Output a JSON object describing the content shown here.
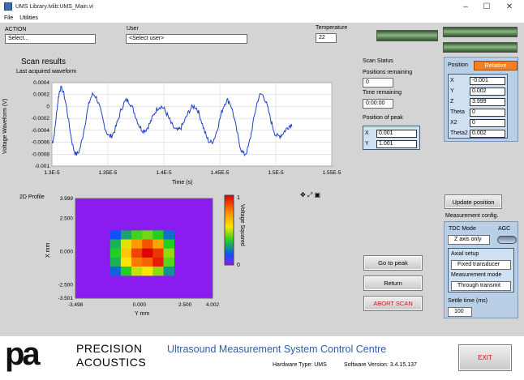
{
  "window": {
    "title": "UMS Library.lvlib:UMS_Main.vi",
    "minimize": "–",
    "maximize": "☐",
    "close": "✕"
  },
  "menu": [
    "File",
    "Utilities"
  ],
  "action": {
    "label": "ACTION",
    "value": "Select..."
  },
  "user": {
    "label": "User",
    "value": "<Select user>"
  },
  "temperature": {
    "label": "Temperature",
    "value": "22"
  },
  "scan_results": {
    "title": "Scan results",
    "subtitle": "Last acquired waveform",
    "ylabel": "Voltage Waveform (V)",
    "xlabel": "Time (s)",
    "yticks": [
      "0.0004",
      "0.0002",
      "0",
      "-0.0002",
      "-0.0004",
      "-0.0006",
      "-0.0008",
      "-0.001"
    ],
    "xticks": [
      "1.3E-5",
      "1.35E-5",
      "1.4E-5",
      "1.45E-5",
      "1.5E-5",
      "1.55E-5"
    ]
  },
  "scan_status": {
    "title": "Scan Status",
    "positions_label": "Positions remaining",
    "positions": "0",
    "time_label": "Time remaining",
    "time": "0:00:00",
    "peak_label": "Position of peak",
    "x_label": "X",
    "x": "0.001",
    "y_label": "Y",
    "y": "1.001"
  },
  "profile": {
    "title": "2D Profile",
    "ylabel": "X mm",
    "xlabel": "Y mm",
    "yticks": [
      "3.999",
      "2.500",
      "0.000",
      "-2.500",
      "-3.501"
    ],
    "xticks": [
      "-3.498",
      "0.000",
      "2.500",
      "4.002"
    ],
    "colorbar_label": "Voltage Squared",
    "cb_max": "1",
    "cb_min": "0",
    "tools": "✥ ⤢ ▣"
  },
  "position": {
    "label": "Position",
    "mode": "Relative",
    "rows": [
      {
        "n": "X",
        "v": "-0.001"
      },
      {
        "n": "Y",
        "v": "0.002"
      },
      {
        "n": "Z",
        "v": "3.999"
      },
      {
        "n": "Theta",
        "v": "0"
      },
      {
        "n": "X2",
        "v": "0"
      },
      {
        "n": "Theta2",
        "v": "0.002"
      }
    ]
  },
  "update_button": "Update position",
  "measurement": {
    "title": "Measurement config.",
    "tdc_label": "TDC Mode",
    "tdc_value": "Z axis only",
    "agc_label": "AGC",
    "axial_label": "Axial setup",
    "axial_value": "Fixed transducer",
    "mode_label": "Measurement mode",
    "mode_value": "Through transmit",
    "settle_label": "Settle time (ms)",
    "settle_value": "100"
  },
  "buttons": {
    "go_to_peak": "Go to peak",
    "return": "Return",
    "abort": "ABORT SCAN",
    "exit": "EXIT"
  },
  "footer": {
    "logo_mark": "pa",
    "brand_line1": "PRECISION",
    "brand_line2": "ACOUSTICS",
    "app_title": "Ultrasound Measurement System Control Centre",
    "hardware": "Hardware Type: UMS",
    "software": "Software Version: 3.4.15.137"
  },
  "chart_data": [
    {
      "type": "line",
      "title": "Last acquired waveform",
      "xlabel": "Time (s)",
      "ylabel": "Voltage Waveform (V)",
      "xlim": [
        1.3e-05,
        1.55e-05
      ],
      "ylim": [
        -0.001,
        0.0004
      ],
      "series": [
        {
          "x": [
            1.3e-05,
            1.308e-05,
            1.322e-05,
            1.337e-05,
            1.352e-05,
            1.367e-05,
            1.382e-05,
            1.397e-05,
            1.412e-05,
            1.427e-05,
            1.442e-05,
            1.457e-05,
            1.472e-05,
            1.487e-05,
            1.502e-05,
            1.515e-05
          ],
          "y": [
            -0.0006,
            0.0003,
            -0.0008,
            0.0002,
            -0.0005,
            0.0001,
            -0.0004,
            0.0,
            -0.0004,
            0.0,
            -0.0006,
            0.0001,
            -0.0008,
            0.0002,
            -0.0005,
            -0.0003
          ]
        }
      ]
    },
    {
      "type": "heatmap",
      "title": "2D Profile",
      "xlabel": "Y mm",
      "ylabel": "X mm",
      "xlim": [
        -3.498,
        4.002
      ],
      "ylim": [
        -3.501,
        3.999
      ],
      "grid": [
        [
          0.15,
          0.28,
          0.38,
          0.42,
          0.35,
          0.2
        ],
        [
          0.3,
          0.52,
          0.72,
          0.85,
          0.7,
          0.35
        ],
        [
          0.35,
          0.62,
          0.88,
          1.0,
          0.9,
          0.45
        ],
        [
          0.3,
          0.55,
          0.78,
          0.82,
          0.95,
          0.4
        ],
        [
          0.18,
          0.35,
          0.5,
          0.55,
          0.45,
          0.25
        ]
      ]
    }
  ]
}
